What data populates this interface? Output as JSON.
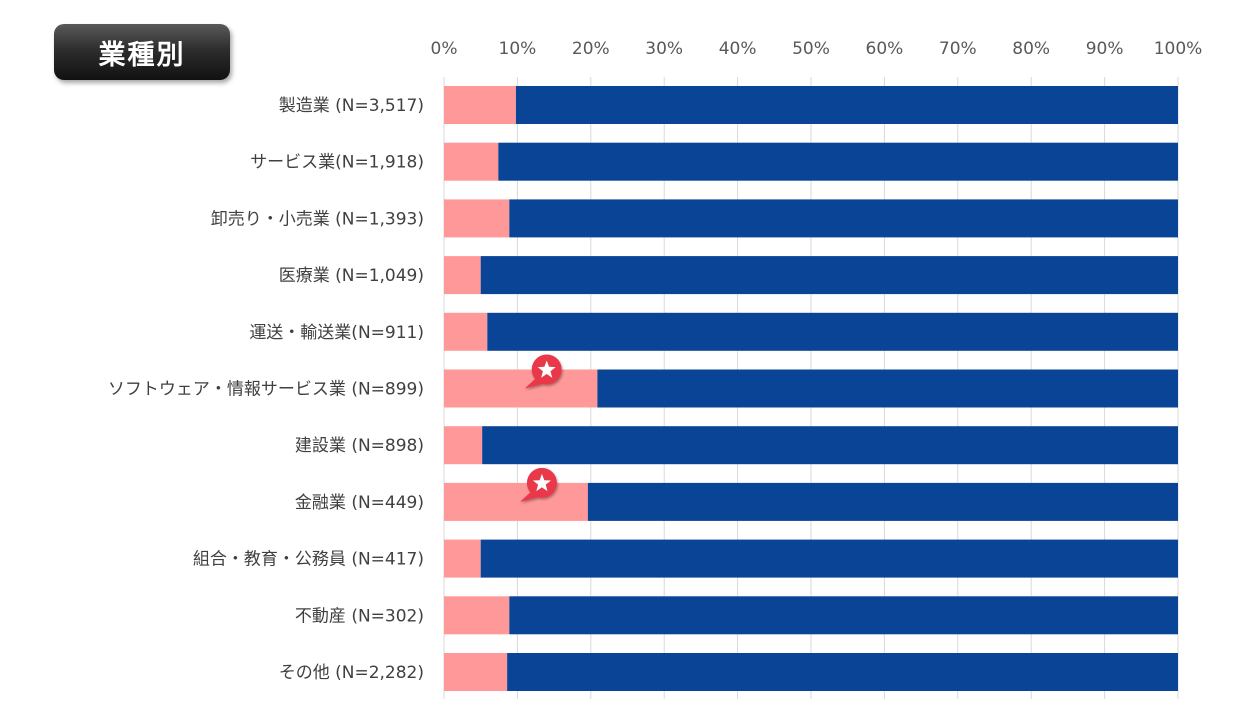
{
  "chart_data": {
    "type": "bar",
    "orientation": "horizontal",
    "stacked": "percent",
    "title": "業種別",
    "xlabel": "",
    "ylabel": "",
    "xlim": [
      0,
      100
    ],
    "x_ticks": [
      "0%",
      "10%",
      "20%",
      "30%",
      "40%",
      "50%",
      "60%",
      "70%",
      "80%",
      "90%",
      "100%"
    ],
    "categories": [
      "製造業 (N=3,517)",
      "サービス業(N=1,918)",
      "卸売り・小売業 (N=1,393)",
      "医療業 (N=1,049)",
      "運送・輸送業(N=911)",
      "ソフトウェア・情報サービス業 (N=899)",
      "建設業 (N=898)",
      "金融業 (N=449)",
      "組合・教育・公務員 (N=417)",
      "不動産 (N=302)",
      "その他 (N=2,282)"
    ],
    "series": [
      {
        "name": "segment_1",
        "color": "#ff9999",
        "values": [
          9.8,
          7.4,
          8.9,
          5.0,
          5.9,
          20.9,
          5.2,
          19.6,
          5.0,
          8.9,
          8.6
        ]
      },
      {
        "name": "segment_2",
        "color": "#0a4496",
        "values": [
          90.2,
          92.6,
          91.1,
          95.0,
          94.1,
          79.1,
          94.8,
          80.4,
          95.0,
          91.1,
          91.4
        ]
      }
    ],
    "highlighted_categories": [
      5,
      7
    ],
    "marker_icon": "star-badge-icon",
    "marker_color": "#e8394a",
    "gridlines": true,
    "legend": "none"
  }
}
